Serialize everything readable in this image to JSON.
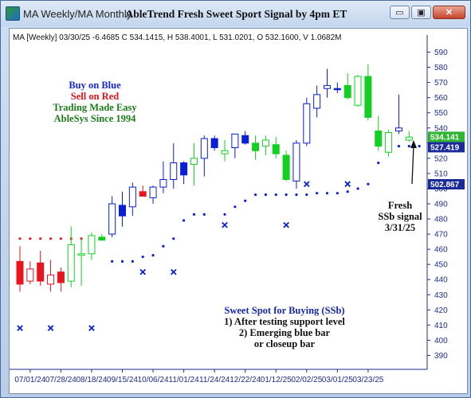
{
  "window": {
    "title": "MA Weekly/MA Monthly",
    "chart_title": "AbleTrend Fresh Sweet Sport Signal by 4pm ET",
    "buttons": {
      "minimize": "▭",
      "restore": "▣",
      "close": "✕"
    }
  },
  "info_line": "MA [Weekly] 03/30/25 -6.4685 C 534.1415, H 538.4001, L 531.0201, O 532.1600, V 1.0682M",
  "annotations": {
    "buy": "Buy on Blue",
    "sell": "Sell on Red",
    "tme": "Trading Made Easy",
    "since": "AbleSys Since 1994",
    "fresh": "Fresh",
    "ssb": "SSb signal",
    "date": "3/31/25",
    "sweet_title": "Sweet Spot for Buying (SSb)",
    "sweet_1": "1) After testing support level",
    "sweet_2": "2) Emerging blue bar",
    "sweet_3": "or closeup bar"
  },
  "price_labels": [
    {
      "text": "534.141",
      "value": 534.141,
      "bg": "#2fb52f"
    },
    {
      "text": "527.419",
      "value": 527.419,
      "bg": "#1a2a9a"
    },
    {
      "text": "502.867",
      "value": 502.867,
      "bg": "#1a2a9a"
    }
  ],
  "colors": {
    "blue": "#0a1ed6",
    "red": "#e8141e",
    "green": "#13cf22",
    "axis": "#1e2c8c"
  },
  "chart_data": {
    "type": "candlestick",
    "y_ticks": [
      390,
      400,
      410,
      420,
      430,
      440,
      450,
      460,
      470,
      480,
      490,
      500,
      510,
      520,
      530,
      540,
      550,
      560,
      570,
      580,
      590
    ],
    "ylim": [
      385,
      595
    ],
    "x_tick_labels": [
      "07/01/24",
      "07/28/24",
      "08/18/24",
      "09/15/24",
      "10/06/24",
      "11/01/24",
      "11/24/24",
      "12/22/24",
      "01/12/25",
      "02/02/25",
      "03/01/25",
      "03/23/25"
    ],
    "x_tick_bar_index": [
      1,
      4,
      7,
      10,
      13,
      16,
      19,
      22,
      25,
      28,
      31,
      34
    ],
    "bars": [
      {
        "o": 452,
        "h": 462,
        "l": 432,
        "c": 437,
        "color": "red",
        "fill": true
      },
      {
        "o": 447,
        "h": 452,
        "l": 437,
        "c": 439,
        "color": "red",
        "fill": false
      },
      {
        "o": 451,
        "h": 459,
        "l": 436,
        "c": 439,
        "color": "red",
        "fill": true
      },
      {
        "o": 437,
        "h": 453,
        "l": 432,
        "c": 443,
        "color": "red",
        "fill": false
      },
      {
        "o": 445,
        "h": 448,
        "l": 432,
        "c": 438,
        "color": "red",
        "fill": true
      },
      {
        "o": 439,
        "h": 475,
        "l": 435,
        "c": 463,
        "color": "green",
        "fill": false
      },
      {
        "o": 456,
        "h": 467,
        "l": 436,
        "c": 457,
        "color": "green",
        "fill": false
      },
      {
        "o": 457,
        "h": 471,
        "l": 453,
        "c": 469,
        "color": "green",
        "fill": false
      },
      {
        "o": 466,
        "h": 470,
        "l": 466,
        "c": 468,
        "color": "green",
        "fill": true
      },
      {
        "o": 470,
        "h": 495,
        "l": 468,
        "c": 490,
        "color": "blue",
        "fill": false
      },
      {
        "o": 482,
        "h": 498,
        "l": 475,
        "c": 489,
        "color": "blue",
        "fill": true
      },
      {
        "o": 488,
        "h": 504,
        "l": 482,
        "c": 501,
        "color": "blue",
        "fill": false
      },
      {
        "o": 498,
        "h": 502,
        "l": 497,
        "c": 495,
        "color": "red",
        "fill": true
      },
      {
        "o": 494,
        "h": 502,
        "l": 490,
        "c": 501,
        "color": "blue",
        "fill": false
      },
      {
        "o": 501,
        "h": 518,
        "l": 497,
        "c": 506,
        "color": "blue",
        "fill": false
      },
      {
        "o": 506,
        "h": 530,
        "l": 500,
        "c": 517,
        "color": "blue",
        "fill": false
      },
      {
        "o": 509,
        "h": 518,
        "l": 503,
        "c": 517,
        "color": "blue",
        "fill": true
      },
      {
        "o": 516,
        "h": 530,
        "l": 502,
        "c": 520,
        "color": "green",
        "fill": false
      },
      {
        "o": 520,
        "h": 535,
        "l": 508,
        "c": 533,
        "color": "blue",
        "fill": false
      },
      {
        "o": 527,
        "h": 535,
        "l": 525,
        "c": 533,
        "color": "blue",
        "fill": true
      },
      {
        "o": 523,
        "h": 532,
        "l": 518,
        "c": 525,
        "color": "green",
        "fill": false
      },
      {
        "o": 527,
        "h": 535,
        "l": 520,
        "c": 536,
        "color": "blue",
        "fill": false
      },
      {
        "o": 535,
        "h": 538,
        "l": 529,
        "c": 530,
        "color": "blue",
        "fill": true
      },
      {
        "o": 525,
        "h": 535,
        "l": 519,
        "c": 530,
        "color": "green",
        "fill": true
      },
      {
        "o": 528,
        "h": 535,
        "l": 522,
        "c": 532,
        "color": "green",
        "fill": false
      },
      {
        "o": 529,
        "h": 534,
        "l": 520,
        "c": 523,
        "color": "green",
        "fill": true
      },
      {
        "o": 522,
        "h": 525,
        "l": 505,
        "c": 506,
        "color": "green",
        "fill": true
      },
      {
        "o": 505,
        "h": 532,
        "l": 500,
        "c": 530,
        "color": "blue",
        "fill": false
      },
      {
        "o": 530,
        "h": 560,
        "l": 528,
        "c": 556,
        "color": "blue",
        "fill": false
      },
      {
        "o": 553,
        "h": 568,
        "l": 547,
        "c": 562,
        "color": "blue",
        "fill": false
      },
      {
        "o": 566,
        "h": 579,
        "l": 560,
        "c": 568,
        "color": "blue",
        "fill": false
      },
      {
        "o": 566,
        "h": 570,
        "l": 563,
        "c": 566,
        "color": "blue",
        "fill": true
      },
      {
        "o": 568,
        "h": 576,
        "l": 559,
        "c": 560,
        "color": "green",
        "fill": true
      },
      {
        "o": 555,
        "h": 575,
        "l": 554,
        "c": 574,
        "color": "green",
        "fill": false
      },
      {
        "o": 574,
        "h": 582,
        "l": 545,
        "c": 547,
        "color": "green",
        "fill": true
      },
      {
        "o": 538,
        "h": 548,
        "l": 525,
        "c": 528,
        "color": "green",
        "fill": true
      },
      {
        "o": 537,
        "h": 539,
        "l": 521,
        "c": 524,
        "color": "green",
        "fill": false
      },
      {
        "o": 538,
        "h": 562,
        "l": 536,
        "c": 540,
        "color": "blue",
        "fill": false
      },
      {
        "o": 532,
        "h": 538,
        "l": 531,
        "c": 534,
        "color": "green",
        "fill": false
      }
    ],
    "red_dots": [
      {
        "i": 0,
        "v": 467
      },
      {
        "i": 1,
        "v": 467
      },
      {
        "i": 2,
        "v": 467
      },
      {
        "i": 3,
        "v": 467
      },
      {
        "i": 4,
        "v": 467
      },
      {
        "i": 5,
        "v": 467
      },
      {
        "i": 6,
        "v": 467
      },
      {
        "i": 7,
        "v": 467
      },
      {
        "i": 8,
        "v": 467
      }
    ],
    "blue_dots": [
      {
        "i": 9,
        "v": 452
      },
      {
        "i": 10,
        "v": 452
      },
      {
        "i": 11,
        "v": 452
      },
      {
        "i": 12,
        "v": 455
      },
      {
        "i": 13,
        "v": 456
      },
      {
        "i": 14,
        "v": 462
      },
      {
        "i": 15,
        "v": 467
      },
      {
        "i": 16,
        "v": 479
      },
      {
        "i": 17,
        "v": 483
      },
      {
        "i": 18,
        "v": 483
      },
      {
        "i": 20,
        "v": 483
      },
      {
        "i": 21,
        "v": 488
      },
      {
        "i": 22,
        "v": 492
      },
      {
        "i": 23,
        "v": 496
      },
      {
        "i": 24,
        "v": 496
      },
      {
        "i": 25,
        "v": 496
      },
      {
        "i": 26,
        "v": 496
      },
      {
        "i": 27,
        "v": 496
      },
      {
        "i": 28,
        "v": 496
      },
      {
        "i": 29,
        "v": 497
      },
      {
        "i": 30,
        "v": 497
      },
      {
        "i": 31,
        "v": 497
      },
      {
        "i": 32,
        "v": 498
      },
      {
        "i": 33,
        "v": 500
      },
      {
        "i": 34,
        "v": 503
      },
      {
        "i": 35,
        "v": 517
      },
      {
        "i": 36,
        "v": 528
      },
      {
        "i": 37,
        "v": 528
      },
      {
        "i": 38,
        "v": 528
      },
      {
        "i": 39,
        "v": 528
      },
      {
        "i": 40,
        "v": 527
      },
      {
        "i": 41,
        "v": 527
      },
      {
        "i": 42,
        "v": 527
      },
      {
        "i": 43,
        "v": 527
      },
      {
        "i": 44,
        "v": 527
      }
    ],
    "x_marks": [
      {
        "i": 0,
        "v": 408
      },
      {
        "i": 3,
        "v": 408
      },
      {
        "i": 7,
        "v": 408
      },
      {
        "i": 12,
        "v": 445
      },
      {
        "i": 15,
        "v": 445
      },
      {
        "i": 20,
        "v": 476
      },
      {
        "i": 26,
        "v": 476
      },
      {
        "i": 28,
        "v": 503
      },
      {
        "i": 32,
        "v": 503
      }
    ]
  }
}
